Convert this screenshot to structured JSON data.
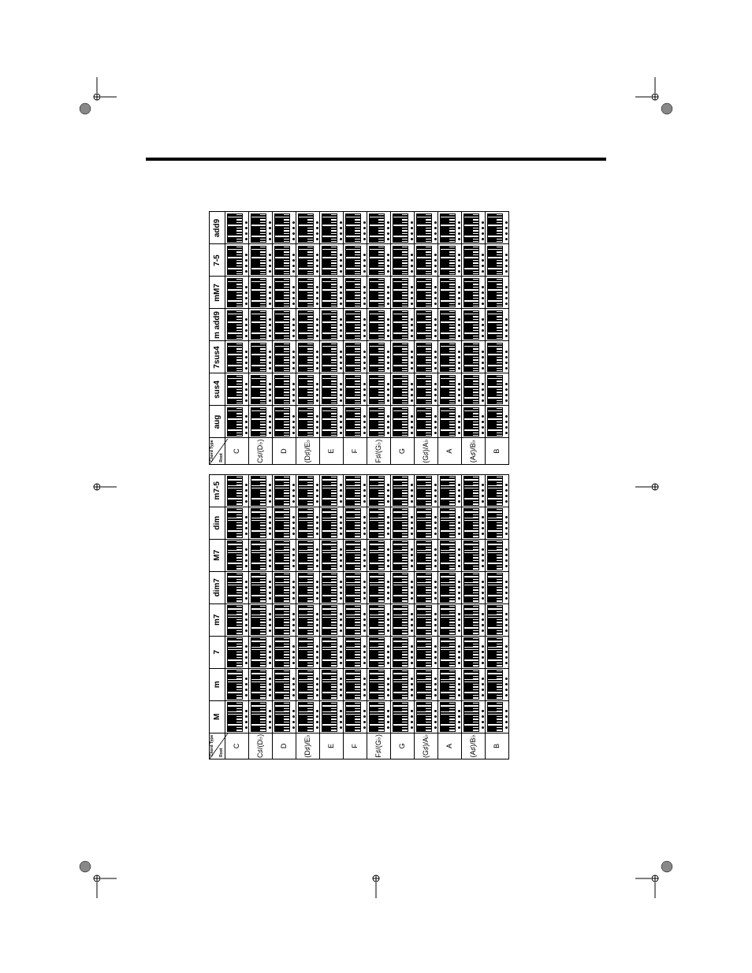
{
  "page": {
    "crop_mark_color": "#000000",
    "background_color": "#ffffff",
    "border_color": "#000000"
  },
  "corner_label": {
    "chord_type": "Chord Type",
    "root": "Root"
  },
  "chord_types_table1": [
    "M",
    "m",
    "7",
    "m7",
    "dim7",
    "M7",
    "dim",
    "m7-5"
  ],
  "chord_types_table2": [
    "aug",
    "sus4",
    "7sus4",
    "m add9",
    "mM7",
    "7-5",
    "add9"
  ],
  "roots": [
    "C",
    "C♯/(D♭)",
    "D",
    "(D♯)/E♭",
    "E",
    "F",
    "F♯/(G♭)",
    "G",
    "(G♯)/A♭",
    "A",
    "(A♯)/B♭",
    "B"
  ],
  "keyboard": {
    "white_key_count": 11,
    "white_key_color": "#ffffff",
    "black_key_color": "#000000",
    "border_color": "#000000",
    "dot_color": "#000000",
    "black_key_positions": [
      0.5,
      1.5,
      3.5,
      4.5,
      5.5,
      7.5,
      8.5
    ],
    "note_dot_count": 4
  },
  "colors": {
    "text": "#000000",
    "cell_bg": "#ffffff",
    "header_bg": "#ffffff"
  }
}
